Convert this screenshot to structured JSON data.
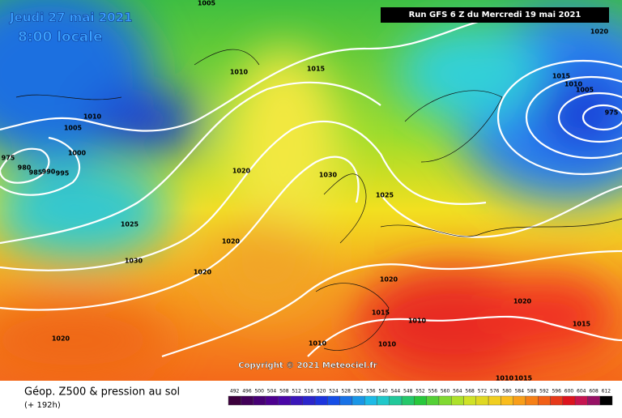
{
  "header": {
    "date": "Jeudi 27 mai 2021",
    "time": "8:00 locale",
    "run": "Run GFS 6 Z du Mercredi 19 mai 2021"
  },
  "copyright": "Copyright © 2021 Meteociel.fr",
  "footer": {
    "title": "Géop. Z500 & pression au sol",
    "lead": "(+ 192h)"
  },
  "legend": {
    "values": [
      492,
      496,
      500,
      504,
      508,
      512,
      516,
      520,
      524,
      528,
      532,
      536,
      540,
      544,
      548,
      552,
      556,
      560,
      564,
      568,
      572,
      576,
      580,
      584,
      588,
      592,
      596,
      600,
      604,
      608,
      612
    ]
  },
  "isobar_labels": [
    "1005",
    "1010",
    "1015",
    "1010",
    "1005",
    "1000",
    "975",
    "980",
    "985",
    "990",
    "995",
    "1020",
    "1030",
    "1025",
    "1025",
    "1020",
    "1030",
    "1020",
    "1020",
    "1020",
    "1015",
    "1010",
    "1010",
    "1010",
    "1020",
    "1020",
    "1015",
    "1010",
    "1005",
    "975",
    "1015",
    "1010",
    "1015"
  ]
}
